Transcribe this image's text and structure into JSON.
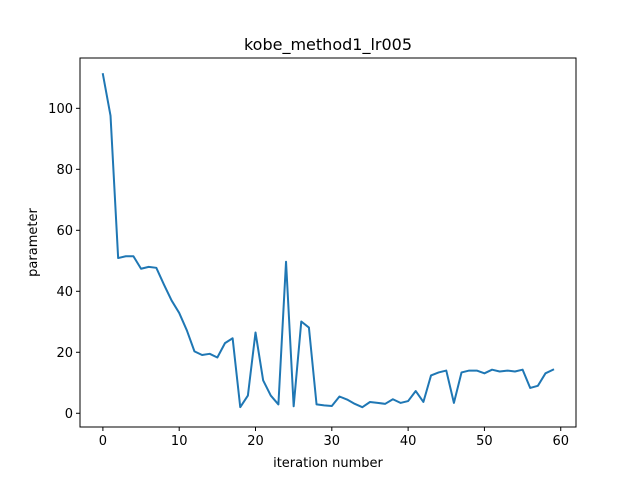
{
  "chart_data": {
    "type": "line",
    "title": "kobe_method1_lr005",
    "xlabel": "iteration number",
    "ylabel": "parameter",
    "xlim": [
      -3,
      62
    ],
    "ylim": [
      -4.5,
      116.5
    ],
    "xticks": [
      0,
      10,
      20,
      30,
      40,
      50,
      60
    ],
    "yticks": [
      0,
      20,
      40,
      60,
      80,
      100
    ],
    "grid": false,
    "series": [
      {
        "color": "#1f77b4",
        "x": [
          0,
          1,
          2,
          3,
          4,
          5,
          6,
          7,
          8,
          9,
          10,
          11,
          12,
          13,
          14,
          15,
          16,
          17,
          18,
          19,
          20,
          21,
          22,
          23,
          24,
          25,
          26,
          27,
          28,
          29,
          30,
          31,
          32,
          33,
          34,
          35,
          36,
          37,
          38,
          39,
          40,
          41,
          42,
          43,
          44,
          45,
          46,
          47,
          48,
          49,
          50,
          51,
          52,
          53,
          54,
          55,
          56,
          57,
          58,
          59
        ],
        "values": [
          111.2,
          97.6,
          50.9,
          51.5,
          51.5,
          47.4,
          48.0,
          47.7,
          42.2,
          37.0,
          32.9,
          27.2,
          20.3,
          19.1,
          19.5,
          18.3,
          23.0,
          24.6,
          2.0,
          5.8,
          26.5,
          10.8,
          5.8,
          2.9,
          49.7,
          2.3,
          30.1,
          28.1,
          2.9,
          2.6,
          2.4,
          5.5,
          4.5,
          3.1,
          2.0,
          3.7,
          3.4,
          3.1,
          4.6,
          3.4,
          4.0,
          7.3,
          3.7,
          12.4,
          13.4,
          14.0,
          3.4,
          13.4,
          14.0,
          14.0,
          13.1,
          14.3,
          13.7,
          14.0,
          13.7,
          14.3,
          8.3,
          9.0,
          13.1,
          14.3
        ]
      }
    ]
  }
}
